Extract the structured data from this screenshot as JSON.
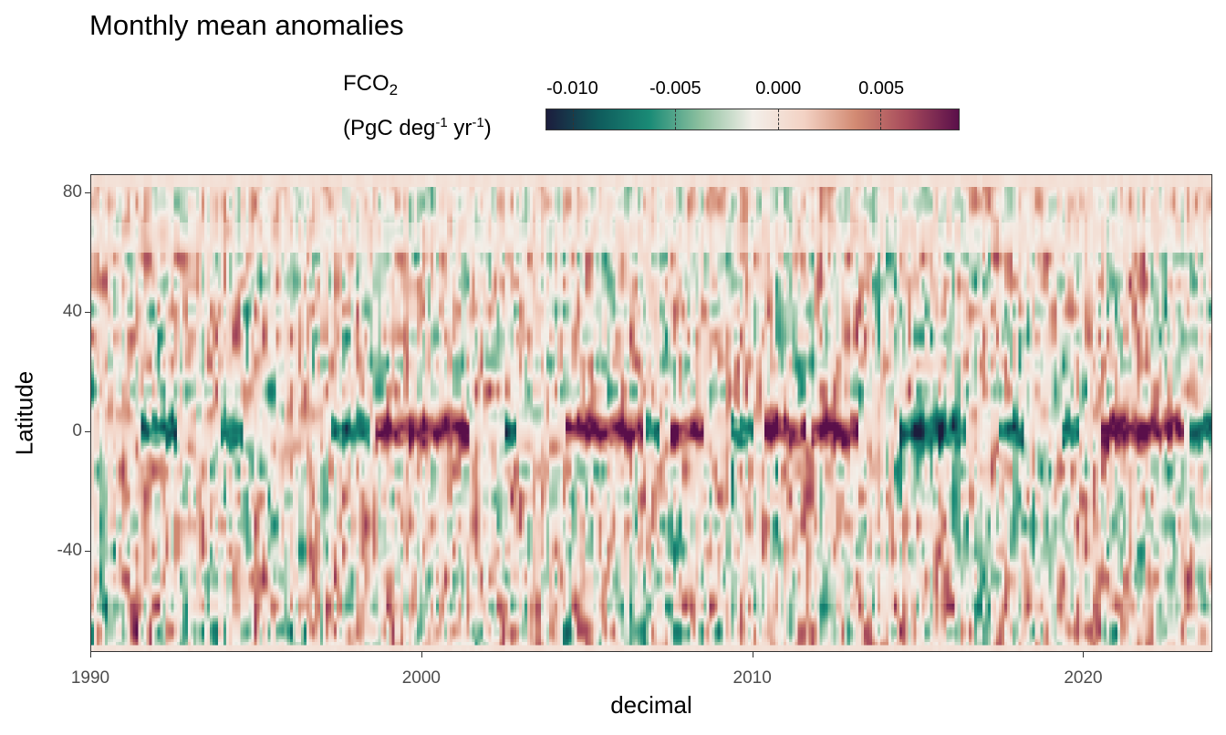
{
  "title": "Monthly mean anomalies",
  "legend": {
    "title_line1": "FCO",
    "title_line1_sub": "2",
    "title_line2_a": "(PgC deg",
    "title_line2_sup1": "-1",
    "title_line2_b": " yr",
    "title_line2_sup2": "-1",
    "title_line2_c": ")",
    "ticks": [
      {
        "value": -0.01,
        "label": "-0.010"
      },
      {
        "value": -0.005,
        "label": "-0.005"
      },
      {
        "value": 0.0,
        "label": "0.000"
      },
      {
        "value": 0.005,
        "label": "0.005"
      }
    ],
    "range": [
      -0.0113,
      0.0088
    ],
    "colors": [
      "#1c1d3d",
      "#0f5b5c",
      "#1a8b76",
      "#8fc1a0",
      "#f3efe9",
      "#f3d2c4",
      "#d28a72",
      "#a64a5b",
      "#5a0f4a"
    ]
  },
  "chart_data": {
    "type": "heatmap",
    "title": "Monthly mean anomalies",
    "xlabel": "decimal",
    "ylabel": "Latitude",
    "xlim": [
      1990,
      2023.9
    ],
    "ylim": [
      -74,
      86
    ],
    "xticks": [
      1990,
      2000,
      2010,
      2020
    ],
    "yticks": [
      80,
      40,
      0,
      -40
    ],
    "value_label": "FCO2 (PgC deg-1 yr-1)",
    "value_range": [
      -0.0113,
      0.0088
    ],
    "grid": false,
    "legend_placement": "top",
    "x_resolution": "monthly",
    "y_resolution": "1 degree",
    "equatorial_band": {
      "latitude": 0,
      "anomaly_events": [
        {
          "x_start": 1991.5,
          "x_end": 1992.6,
          "sign": "negative"
        },
        {
          "x_start": 1993.9,
          "x_end": 1994.6,
          "sign": "negative"
        },
        {
          "x_start": 1997.3,
          "x_end": 1998.4,
          "sign": "negative"
        },
        {
          "x_start": 1998.6,
          "x_end": 2001.4,
          "sign": "positive"
        },
        {
          "x_start": 2002.5,
          "x_end": 2002.9,
          "sign": "negative"
        },
        {
          "x_start": 2004.4,
          "x_end": 2006.7,
          "sign": "positive"
        },
        {
          "x_start": 2006.8,
          "x_end": 2007.2,
          "sign": "negative"
        },
        {
          "x_start": 2007.5,
          "x_end": 2008.5,
          "sign": "positive"
        },
        {
          "x_start": 2009.4,
          "x_end": 2010.0,
          "sign": "negative"
        },
        {
          "x_start": 2010.4,
          "x_end": 2011.6,
          "sign": "positive"
        },
        {
          "x_start": 2011.8,
          "x_end": 2013.2,
          "sign": "positive"
        },
        {
          "x_start": 2014.5,
          "x_end": 2016.5,
          "sign": "negative"
        },
        {
          "x_start": 2017.5,
          "x_end": 2018.2,
          "sign": "negative"
        },
        {
          "x_start": 2019.4,
          "x_end": 2019.9,
          "sign": "negative"
        },
        {
          "x_start": 2020.6,
          "x_end": 2023.1,
          "sign": "positive"
        },
        {
          "x_start": 2023.2,
          "x_end": 2023.9,
          "sign": "negative"
        }
      ]
    }
  }
}
